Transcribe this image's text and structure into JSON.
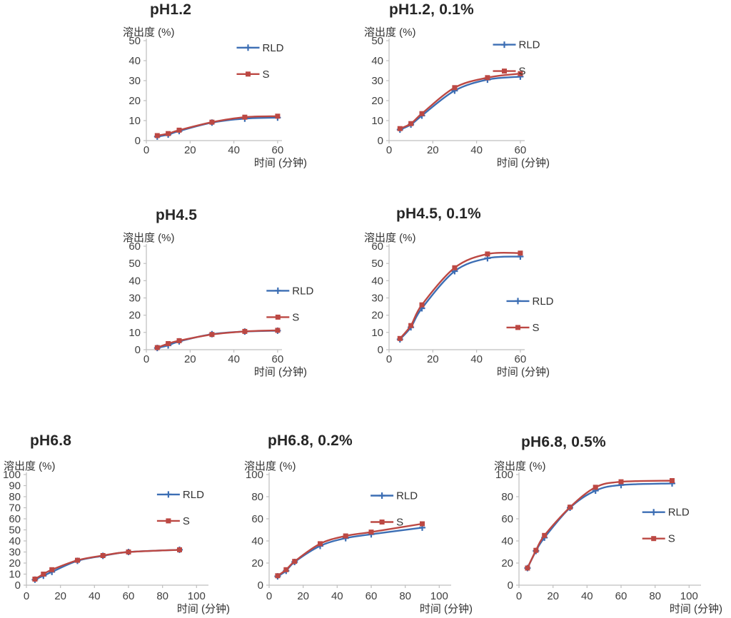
{
  "page": {
    "background": "#ffffff"
  },
  "colors": {
    "rld": "#3C6EB4",
    "s": "#BC4843",
    "axis": "#BFBFBF",
    "tick_text": "#3F3F3F",
    "title_text": "#262626"
  },
  "chart_data": [
    {
      "id": "ph12",
      "type": "line",
      "title": "pH1.2",
      "ylabel": "溶出度 (%)",
      "xlabel": "时间 (分钟)",
      "x": [
        5,
        10,
        15,
        30,
        45,
        60
      ],
      "series": [
        {
          "name": "RLD",
          "color": "#3C6EB4",
          "marker": "plus",
          "values": [
            2,
            3,
            4.8,
            9,
            11,
            11.5
          ]
        },
        {
          "name": "S",
          "color": "#BC4843",
          "marker": "square",
          "values": [
            2.5,
            3.5,
            5.2,
            9.2,
            11.7,
            12.2
          ]
        }
      ],
      "xlim": [
        0,
        62
      ],
      "xticks": [
        0,
        20,
        40,
        60
      ],
      "ylim": [
        0,
        50
      ],
      "yticks": [
        0,
        10,
        20,
        30,
        40,
        50
      ],
      "grid": false,
      "legend": {
        "position": "top-right",
        "fx": 0.75,
        "fy": 0.07
      }
    },
    {
      "id": "ph12-01",
      "type": "line",
      "title": "pH1.2, 0.1%",
      "ylabel": "溶出度 (%)",
      "xlabel": "时间 (分钟)",
      "x": [
        5,
        10,
        15,
        30,
        45,
        60
      ],
      "series": [
        {
          "name": "RLD",
          "color": "#3C6EB4",
          "marker": "plus",
          "values": [
            5.5,
            8,
            12.5,
            25,
            30.5,
            32
          ]
        },
        {
          "name": "S",
          "color": "#BC4843",
          "marker": "square",
          "values": [
            6,
            8.5,
            13.5,
            26.5,
            31.5,
            33.5
          ]
        }
      ],
      "xlim": [
        0,
        62
      ],
      "xticks": [
        0,
        20,
        40,
        60
      ],
      "ylim": [
        0,
        50
      ],
      "yticks": [
        0,
        10,
        20,
        30,
        40,
        50
      ],
      "grid": false,
      "legend": {
        "position": "top-right",
        "fx": 0.85,
        "fy": 0.04
      }
    },
    {
      "id": "ph45",
      "type": "line",
      "title": "pH4.5",
      "ylabel": "溶出度 (%)",
      "xlabel": "时间 (分钟)",
      "x": [
        5,
        10,
        15,
        30,
        45,
        60
      ],
      "series": [
        {
          "name": "RLD",
          "color": "#3C6EB4",
          "marker": "plus",
          "values": [
            1,
            2.5,
            4.8,
            9,
            10.5,
            11
          ]
        },
        {
          "name": "S",
          "color": "#BC4843",
          "marker": "square",
          "values": [
            1.2,
            3.5,
            5.2,
            8.8,
            10.6,
            11.2
          ]
        }
      ],
      "xlim": [
        0,
        62
      ],
      "xticks": [
        0,
        20,
        40,
        60
      ],
      "ylim": [
        0,
        60
      ],
      "yticks": [
        0,
        10,
        20,
        30,
        40,
        50,
        60
      ],
      "grid": false,
      "legend": {
        "position": "middle-right",
        "fx": 0.97,
        "fy": 0.43
      }
    },
    {
      "id": "ph45-01",
      "type": "line",
      "title": "pH4.5, 0.1%",
      "ylabel": "溶出度 (%)",
      "xlabel": "时间 (分钟)",
      "x": [
        5,
        10,
        15,
        30,
        45,
        60
      ],
      "series": [
        {
          "name": "RLD",
          "color": "#3C6EB4",
          "marker": "plus",
          "values": [
            6,
            13,
            24,
            45.5,
            53,
            54
          ]
        },
        {
          "name": "S",
          "color": "#BC4843",
          "marker": "square",
          "values": [
            6.5,
            14,
            26,
            47.5,
            55.5,
            56
          ]
        }
      ],
      "xlim": [
        0,
        62
      ],
      "xticks": [
        0,
        20,
        40,
        60
      ],
      "ylim": [
        0,
        60
      ],
      "yticks": [
        0,
        10,
        20,
        30,
        40,
        50,
        60
      ],
      "grid": false,
      "legend": {
        "position": "middle-right",
        "fx": 0.95,
        "fy": 0.53
      }
    },
    {
      "id": "ph68",
      "type": "line",
      "title": "pH6.8",
      "ylabel": "溶出度 (%)",
      "xlabel": "时间 (分钟)",
      "x": [
        5,
        10,
        15,
        30,
        45,
        60,
        90
      ],
      "series": [
        {
          "name": "RLD",
          "color": "#3C6EB4",
          "marker": "plus",
          "values": [
            5,
            8.5,
            12,
            22,
            26.5,
            30,
            32
          ]
        },
        {
          "name": "S",
          "color": "#BC4843",
          "marker": "square",
          "values": [
            5.5,
            10,
            14,
            22.5,
            26.8,
            30,
            32
          ]
        }
      ],
      "xlim": [
        0,
        107
      ],
      "xticks": [
        0,
        20,
        40,
        60,
        80,
        100
      ],
      "ylim": [
        0,
        100
      ],
      "yticks": [
        0,
        10,
        20,
        30,
        40,
        50,
        60,
        70,
        80,
        90,
        100
      ],
      "grid": false,
      "legend": {
        "position": "top-right",
        "fx": 0.78,
        "fy": 0.18
      }
    },
    {
      "id": "ph68-02",
      "type": "line",
      "title": "pH6.8, 0.2%",
      "ylabel": "溶出度 (%)",
      "xlabel": "时间 (分钟)",
      "x": [
        5,
        10,
        15,
        30,
        45,
        60,
        90
      ],
      "series": [
        {
          "name": "RLD",
          "color": "#3C6EB4",
          "marker": "plus",
          "values": [
            8,
            13,
            21,
            35.5,
            42.5,
            46,
            52
          ]
        },
        {
          "name": "S",
          "color": "#BC4843",
          "marker": "square",
          "values": [
            8.5,
            14,
            21.5,
            37.5,
            44.5,
            48,
            55.5
          ]
        }
      ],
      "xlim": [
        0,
        107
      ],
      "xticks": [
        0,
        20,
        40,
        60,
        80,
        100
      ],
      "ylim": [
        0,
        100
      ],
      "yticks": [
        0,
        20,
        40,
        60,
        80,
        100
      ],
      "grid": false,
      "legend": {
        "position": "top-right",
        "fx": 0.62,
        "fy": 0.19
      }
    },
    {
      "id": "ph68-05",
      "type": "line",
      "title": "pH6.8, 0.5%",
      "ylabel": "溶出度 (%)",
      "xlabel": "时间 (分钟)",
      "x": [
        5,
        10,
        15,
        30,
        45,
        60,
        90
      ],
      "series": [
        {
          "name": "RLD",
          "color": "#3C6EB4",
          "marker": "plus",
          "values": [
            15.5,
            31,
            43,
            70,
            85.5,
            90.5,
            92
          ]
        },
        {
          "name": "S",
          "color": "#BC4843",
          "marker": "square",
          "values": [
            15.5,
            31.5,
            45,
            70.5,
            88.5,
            93.5,
            94.5
          ]
        }
      ],
      "xlim": [
        0,
        107
      ],
      "xticks": [
        0,
        20,
        40,
        60,
        80,
        100
      ],
      "ylim": [
        0,
        100
      ],
      "yticks": [
        0,
        20,
        40,
        60,
        80,
        100
      ],
      "grid": false,
      "legend": {
        "position": "middle-right",
        "fx": 0.74,
        "fy": 0.34
      }
    }
  ]
}
